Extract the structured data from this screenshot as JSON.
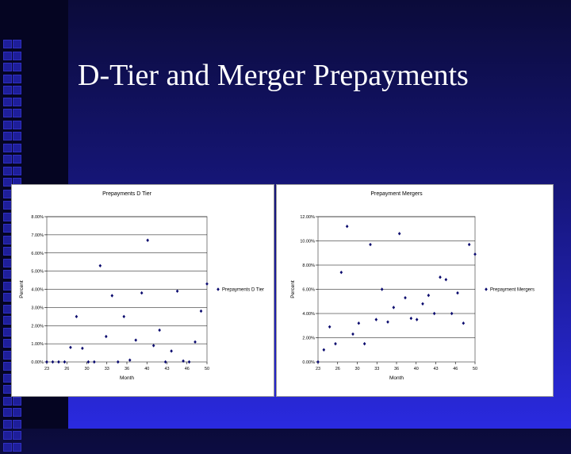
{
  "slide": {
    "title": "D-Tier and Merger Prepayments"
  },
  "chart_data": [
    {
      "type": "scatter",
      "title": "Prepayments D Tier",
      "xlabel": "Month",
      "ylabel": "Percent",
      "ylim": [
        0,
        8
      ],
      "yticks": [
        "0.00%",
        "1.00%",
        "2.00%",
        "3.00%",
        "4.00%",
        "5.00%",
        "6.00%",
        "7.00%",
        "8.00%"
      ],
      "xlim": [
        23,
        50
      ],
      "xticks": [
        "23",
        "26",
        "30",
        "33",
        "36",
        "40",
        "43",
        "46",
        "50"
      ],
      "grid": true,
      "legend": "right",
      "series": [
        {
          "name": "Prepayments D Tier",
          "color": "#0a0a6e",
          "x": [
            23,
            24,
            25,
            26,
            27,
            28,
            29,
            30,
            31,
            32,
            33,
            34,
            35,
            36,
            37,
            38,
            39,
            40,
            41,
            42,
            43,
            44,
            45,
            46,
            47,
            48,
            49,
            50
          ],
          "y": [
            0,
            0,
            0,
            0,
            0.8,
            2.5,
            0.75,
            0,
            0,
            5.3,
            1.4,
            3.65,
            0,
            2.5,
            0.1,
            1.2,
            3.8,
            6.7,
            0.9,
            1.75,
            0,
            0.6,
            3.9,
            0.05,
            0,
            1.1,
            2.8,
            4.3
          ]
        }
      ]
    },
    {
      "type": "scatter",
      "title": "Prepayment Mergers",
      "xlabel": "Month",
      "ylabel": "Percent",
      "ylim": [
        0,
        12
      ],
      "yticks": [
        "0.00%",
        "2.00%",
        "4.00%",
        "6.00%",
        "8.00%",
        "10.00%",
        "12.00%"
      ],
      "xlim": [
        23,
        50
      ],
      "xticks": [
        "23",
        "26",
        "30",
        "33",
        "36",
        "40",
        "43",
        "46",
        "50"
      ],
      "grid": true,
      "legend": "right",
      "series": [
        {
          "name": "Prepayment Mergers",
          "color": "#0a0a6e",
          "x": [
            23,
            24,
            25,
            26,
            27,
            28,
            29,
            30,
            31,
            32,
            33,
            34,
            35,
            36,
            37,
            38,
            39,
            40,
            41,
            42,
            43,
            44,
            45,
            46,
            47,
            48,
            49,
            50
          ],
          "y": [
            0,
            1.0,
            2.9,
            1.5,
            7.4,
            11.2,
            2.3,
            3.2,
            1.5,
            9.7,
            3.5,
            6.0,
            3.3,
            4.5,
            10.6,
            5.3,
            3.6,
            3.5,
            4.8,
            5.5,
            4.0,
            7.0,
            6.8,
            4.0,
            5.7,
            3.2,
            9.7,
            8.9
          ]
        }
      ]
    }
  ]
}
